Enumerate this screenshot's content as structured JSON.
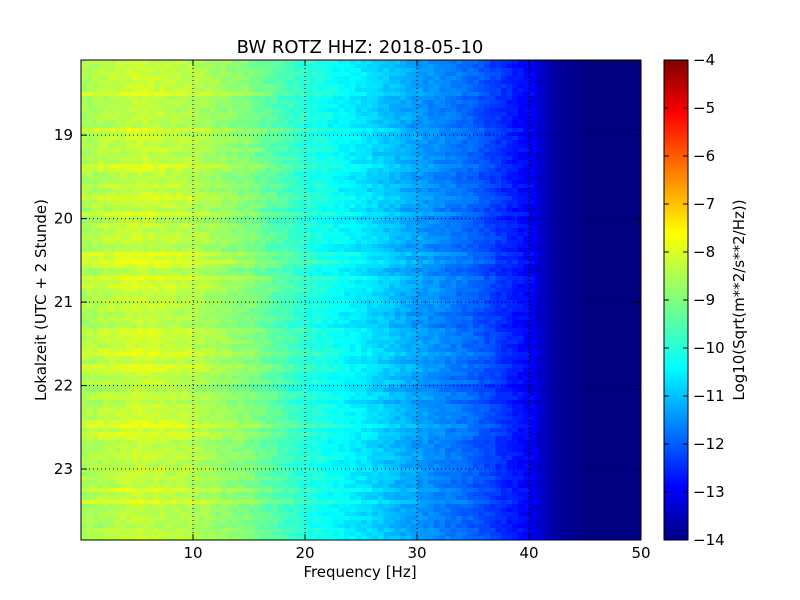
{
  "chart_data": {
    "type": "heatmap",
    "title": "BW ROTZ HHZ: 2018-05-10",
    "xlabel": "Frequency [Hz]",
    "ylabel": "Lokalzeit (UTC + 2 Stunde)",
    "xlim": [
      0,
      50
    ],
    "ylim": [
      18.1,
      23.85
    ],
    "y_inverted": true,
    "xticks": [
      10,
      20,
      30,
      40,
      50
    ],
    "yticks": [
      19,
      20,
      21,
      22,
      23
    ],
    "grid": true,
    "colormap": "jet",
    "colorbar": {
      "label": "Log10(Sqrt(m**2/s**2/Hz))",
      "range": [
        -14,
        -4
      ],
      "ticks": [
        -4,
        -5,
        -6,
        -7,
        -8,
        -9,
        -10,
        -11,
        -12,
        -13,
        -14
      ]
    },
    "spectral_profile": {
      "frequency_hz": [
        0.5,
        5,
        10,
        15,
        20,
        25,
        30,
        35,
        40,
        42,
        45,
        50
      ],
      "log10_amplitude": [
        -8.6,
        -8.3,
        -8.5,
        -9.0,
        -9.9,
        -10.5,
        -11.2,
        -11.8,
        -12.8,
        -13.6,
        -14,
        -14
      ]
    },
    "bright_bands_hours": [
      18.5,
      18.95,
      19.4,
      19.75,
      19.95,
      20.45,
      20.55,
      20.7,
      20.8,
      21.35,
      21.6,
      21.8,
      22.45,
      22.6,
      23.25,
      23.4
    ]
  },
  "colors": {
    "colormap": [
      "#00007f",
      "#0000ff",
      "#007fff",
      "#00ffff",
      "#7fff7f",
      "#ffff00",
      "#ff7f00",
      "#ff0000",
      "#7f0000"
    ]
  }
}
